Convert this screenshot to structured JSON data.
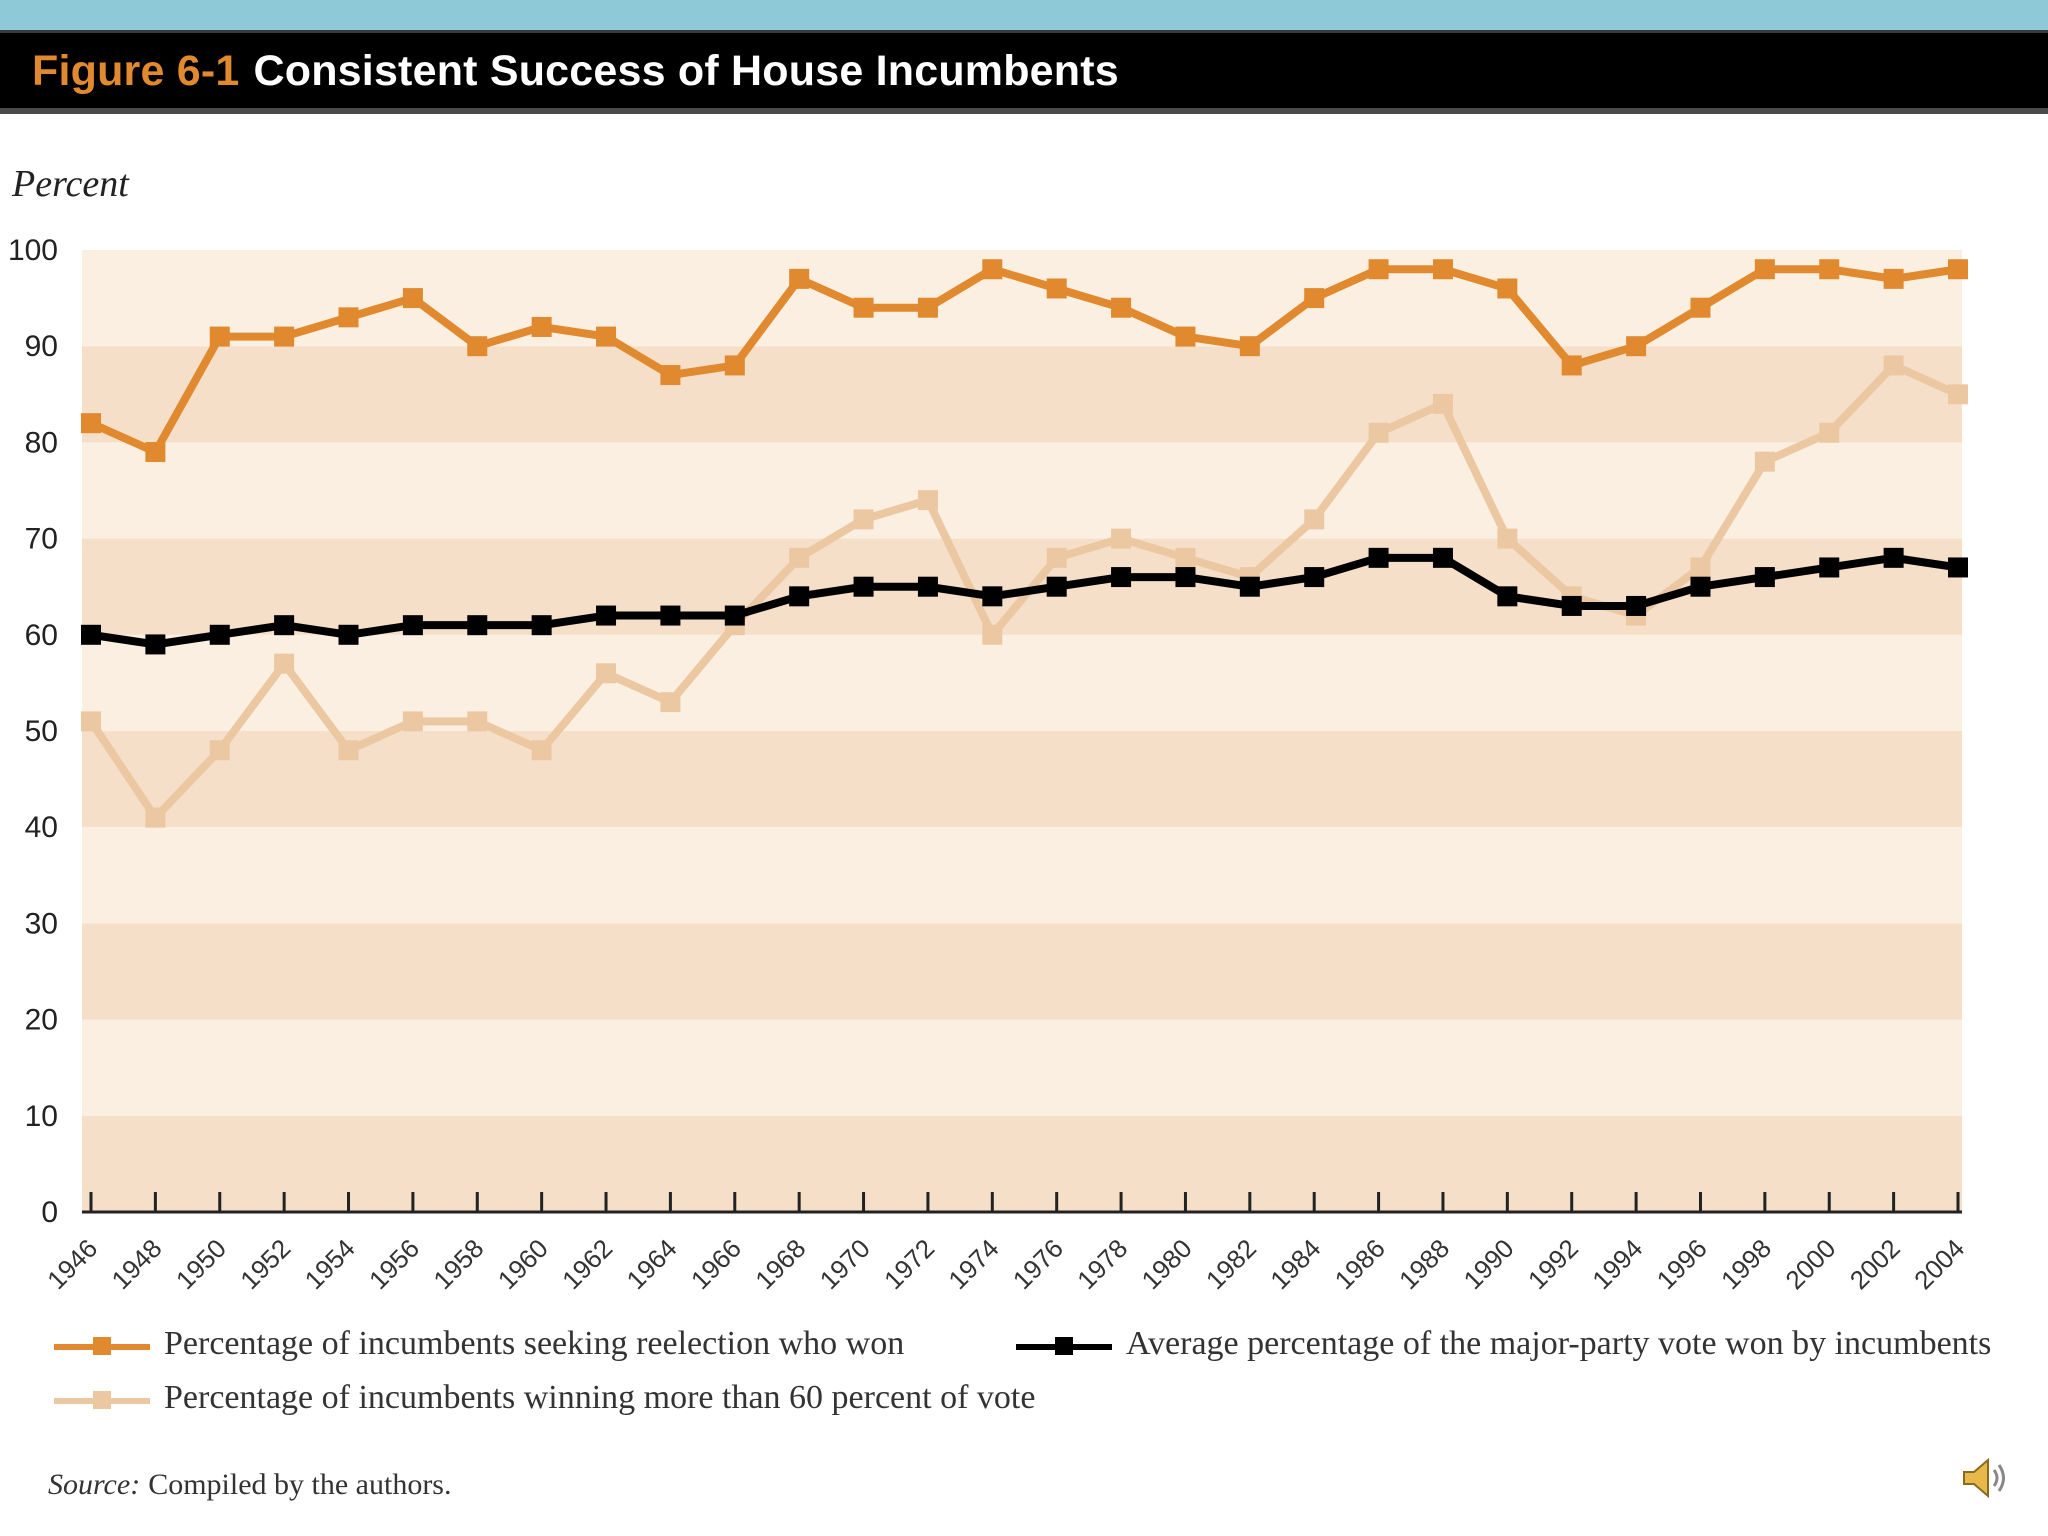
{
  "header": {
    "figure_label": "Figure 6-1",
    "title": "Consistent Success of House Incumbents"
  },
  "source": {
    "label": "Source:",
    "text": "Compiled by the authors."
  },
  "colors": {
    "orange": "#e0892e",
    "tan": "#ecc8a2",
    "black": "#000000",
    "band_dark": "#f5dfc8",
    "band_light": "#fbefe2"
  },
  "chart_data": {
    "type": "line",
    "title": "Consistent Success of House Incumbents",
    "ylabel": "Percent",
    "xlabel": "",
    "ylim": [
      0,
      100
    ],
    "yticks": [
      "0",
      "10",
      "20",
      "30",
      "40",
      "50",
      "60",
      "70",
      "80",
      "90",
      "100"
    ],
    "categories": [
      "1946",
      "1948",
      "1950",
      "1952",
      "1954",
      "1956",
      "1958",
      "1960",
      "1962",
      "1964",
      "1966",
      "1968",
      "1970",
      "1972",
      "1974",
      "1976",
      "1978",
      "1980",
      "1982",
      "1984",
      "1986",
      "1988",
      "1990",
      "1992",
      "1994",
      "1996",
      "1998",
      "2000",
      "2002",
      "2004"
    ],
    "series": [
      {
        "name": "Percentage of incumbents seeking reelection who won",
        "color": "#e0892e",
        "values": [
          82,
          79,
          91,
          91,
          93,
          95,
          90,
          92,
          91,
          87,
          88,
          97,
          94,
          94,
          98,
          96,
          94,
          91,
          90,
          95,
          98,
          98,
          96,
          88,
          90,
          94,
          98,
          98,
          97,
          98
        ]
      },
      {
        "name": "Percentage of incumbents winning more than 60 percent of vote",
        "color": "#ecc8a2",
        "values": [
          51,
          41,
          48,
          57,
          48,
          51,
          51,
          48,
          56,
          53,
          61,
          68,
          72,
          74,
          60,
          68,
          70,
          68,
          66,
          72,
          81,
          84,
          70,
          64,
          62,
          67,
          78,
          81,
          88,
          85
        ]
      },
      {
        "name": "Average percentage of the major-party vote won by incumbents",
        "color": "#000000",
        "values": [
          60,
          59,
          60,
          61,
          60,
          61,
          61,
          61,
          62,
          62,
          62,
          64,
          65,
          65,
          64,
          65,
          66,
          66,
          65,
          66,
          68,
          68,
          64,
          63,
          63,
          65,
          66,
          67,
          68,
          67
        ]
      }
    ],
    "legend": [
      "Percentage of incumbents seeking reelection who won",
      "Average percentage of the major-party vote won by incumbents",
      "Percentage of incumbents winning more than 60 percent of vote"
    ]
  }
}
